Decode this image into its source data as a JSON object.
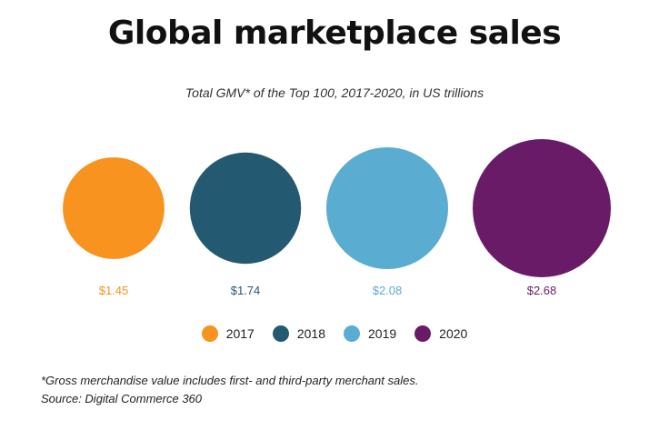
{
  "chart_data": {
    "type": "bubble",
    "title": "Global marketplace sales",
    "subtitle": "Total GMV* of the Top 100, 2017-2020, in US trillions",
    "categories": [
      "2017",
      "2018",
      "2019",
      "2020"
    ],
    "values": [
      1.45,
      1.74,
      2.08,
      2.68
    ],
    "value_labels": [
      "$1.45",
      "$1.74",
      "$2.08",
      "$2.68"
    ],
    "colors": [
      "#f7931e",
      "#235a71",
      "#5aacd0",
      "#6a1b68"
    ],
    "legend": [
      "2017",
      "2018",
      "2019",
      "2020"
    ],
    "legend_position": "bottom",
    "unit": "US trillions"
  },
  "footnotes": {
    "note": "*Gross merchandise value includes first- and third-party merchant sales.",
    "source": "Source: Digital Commerce 360"
  }
}
